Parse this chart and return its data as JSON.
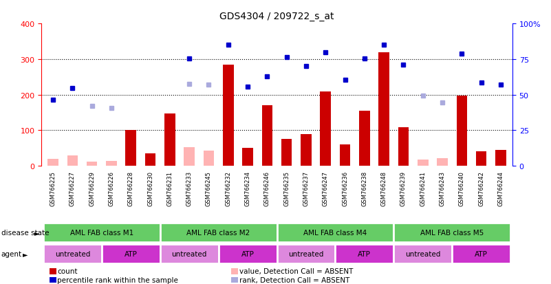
{
  "title": "GDS4304 / 209722_s_at",
  "samples": [
    "GSM766225",
    "GSM766227",
    "GSM766229",
    "GSM766226",
    "GSM766228",
    "GSM766230",
    "GSM766231",
    "GSM766233",
    "GSM766245",
    "GSM766232",
    "GSM766234",
    "GSM766246",
    "GSM766235",
    "GSM766237",
    "GSM766247",
    "GSM766236",
    "GSM766238",
    "GSM766248",
    "GSM766239",
    "GSM766241",
    "GSM766243",
    "GSM766240",
    "GSM766242",
    "GSM766244"
  ],
  "count": [
    null,
    null,
    null,
    null,
    100,
    35,
    148,
    null,
    null,
    285,
    50,
    170,
    75,
    90,
    210,
    60,
    155,
    320,
    108,
    null,
    null,
    197,
    40,
    45
  ],
  "count_absent": [
    20,
    30,
    12,
    14,
    null,
    null,
    null,
    52,
    42,
    null,
    null,
    null,
    null,
    null,
    null,
    null,
    null,
    null,
    null,
    18,
    22,
    null,
    null,
    null
  ],
  "rank": [
    185,
    218,
    null,
    null,
    null,
    null,
    null,
    302,
    null,
    340,
    222,
    252,
    305,
    280,
    320,
    242,
    302,
    340,
    285,
    null,
    null,
    315,
    235,
    228
  ],
  "rank_absent": [
    null,
    null,
    168,
    163,
    null,
    null,
    null,
    230,
    228,
    null,
    null,
    null,
    null,
    null,
    null,
    null,
    null,
    null,
    null,
    198,
    178,
    null,
    null,
    null
  ],
  "disease_groups": [
    {
      "label": "AML FAB class M1",
      "start": 0,
      "end": 5
    },
    {
      "label": "AML FAB class M2",
      "start": 6,
      "end": 11
    },
    {
      "label": "AML FAB class M4",
      "start": 12,
      "end": 17
    },
    {
      "label": "AML FAB class M5",
      "start": 18,
      "end": 23
    }
  ],
  "agent_groups": [
    {
      "label": "untreated",
      "start": 0,
      "end": 2
    },
    {
      "label": "ATP",
      "start": 3,
      "end": 5
    },
    {
      "label": "untreated",
      "start": 6,
      "end": 8
    },
    {
      "label": "ATP",
      "start": 9,
      "end": 11
    },
    {
      "label": "untreated",
      "start": 12,
      "end": 14
    },
    {
      "label": "ATP",
      "start": 15,
      "end": 17
    },
    {
      "label": "untreated",
      "start": 18,
      "end": 20
    },
    {
      "label": "ATP",
      "start": 21,
      "end": 23
    }
  ],
  "ylim_left": [
    0,
    400
  ],
  "ylim_right": [
    0,
    100
  ],
  "yticks_left": [
    0,
    100,
    200,
    300,
    400
  ],
  "yticks_right": [
    0,
    25,
    50,
    75,
    100
  ],
  "bar_color": "#cc0000",
  "bar_absent_color": "#ffb3b3",
  "rank_color": "#0000cc",
  "rank_absent_color": "#aaaadd",
  "disease_color": "#66cc66",
  "untreated_color": "#dd88dd",
  "atp_color": "#cc33cc",
  "xtick_bg_color": "#cccccc",
  "legend_items": [
    {
      "label": "count",
      "color": "#cc0000"
    },
    {
      "label": "percentile rank within the sample",
      "color": "#0000cc"
    },
    {
      "label": "value, Detection Call = ABSENT",
      "color": "#ffb3b3"
    },
    {
      "label": "rank, Detection Call = ABSENT",
      "color": "#aaaadd"
    }
  ]
}
